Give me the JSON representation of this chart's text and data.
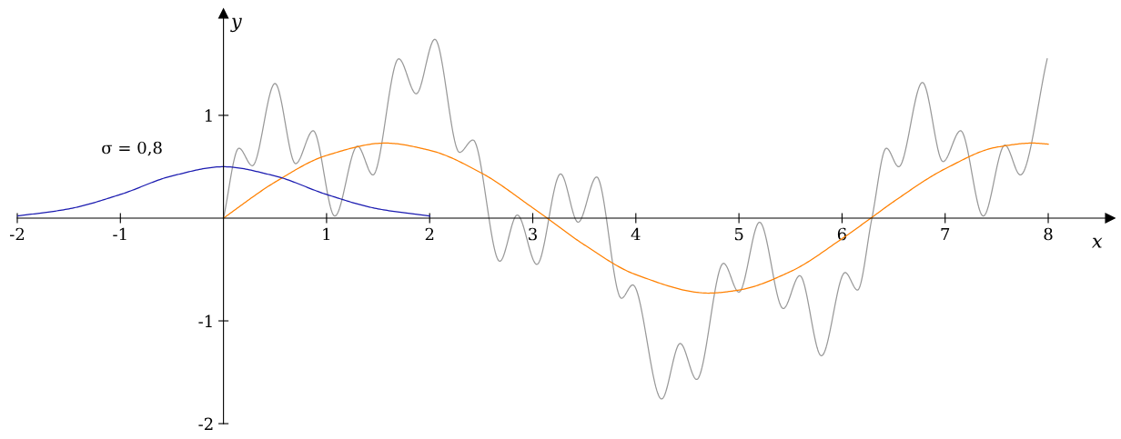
{
  "chart_data": {
    "type": "line",
    "xlabel": "x",
    "ylabel": "y",
    "xlim": [
      -2,
      8.6
    ],
    "ylim": [
      -2,
      1.99
    ],
    "xticks": [
      -2,
      -1,
      1,
      2,
      3,
      4,
      5,
      6,
      7,
      8
    ],
    "yticks": [
      -2,
      -1,
      1
    ],
    "series": [
      {
        "color": "#999999",
        "x": [
          0,
          0.15,
          0.28,
          0.5,
          0.7,
          0.87,
          1.08,
          1.3,
          1.45,
          1.7,
          1.87,
          2.05,
          2.29,
          2.42,
          2.68,
          2.85,
          3.04,
          3.27,
          3.44,
          3.62,
          3.86,
          3.97,
          4.25,
          4.43,
          4.59,
          4.85,
          5.0,
          5.2,
          5.43,
          5.59,
          5.8,
          6.03,
          6.15,
          6.29,
          6.43,
          6.55,
          6.78,
          6.98,
          7.15,
          7.37,
          7.58,
          7.73,
          7.99
        ],
        "values": [
          0,
          0.68,
          0.51,
          1.31,
          0.53,
          0.85,
          0.02,
          0.7,
          0.42,
          1.55,
          1.21,
          1.74,
          0.64,
          0.76,
          -0.42,
          0.03,
          -0.45,
          0.43,
          -0.04,
          0.4,
          -0.78,
          -0.65,
          -1.76,
          -1.22,
          -1.57,
          -0.44,
          -0.72,
          -0.04,
          -0.88,
          -0.56,
          -1.34,
          -0.53,
          -0.7,
          0,
          0.68,
          0.5,
          1.32,
          0.55,
          0.85,
          0.02,
          0.71,
          0.42,
          1.55
        ]
      },
      {
        "color": "#ff8000",
        "x": [
          0,
          0.5,
          1,
          1.57,
          2,
          2.5,
          3,
          3.14,
          3.5,
          4,
          4.71,
          5,
          5.5,
          6,
          6.28,
          6.5,
          7,
          7.5,
          7.85,
          8
        ],
        "values": [
          0,
          0.35,
          0.61,
          0.73,
          0.66,
          0.44,
          0.1,
          0,
          -0.26,
          -0.55,
          -0.73,
          -0.7,
          -0.52,
          -0.2,
          0,
          0.16,
          0.48,
          0.69,
          0.73,
          0.72
        ]
      },
      {
        "color": "#1a1ab0",
        "x": [
          -2,
          -1.5,
          -1,
          -0.5,
          0,
          0.5,
          1,
          1.5,
          2
        ],
        "values": [
          0.02,
          0.09,
          0.23,
          0.41,
          0.5,
          0.41,
          0.23,
          0.09,
          0.02
        ]
      }
    ],
    "annotations": [
      "σ = 0,8"
    ]
  }
}
